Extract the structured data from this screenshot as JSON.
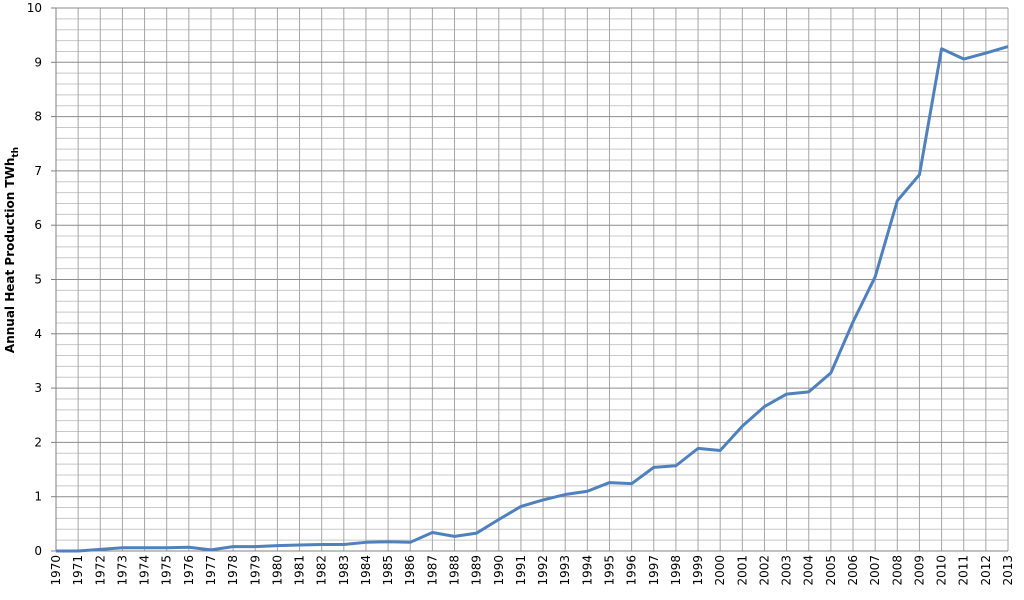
{
  "chart_data": {
    "type": "line",
    "y_label": "Annual Heat Production TWh",
    "y_label_subscript": "th",
    "categories": [
      "1970",
      "1971",
      "1972",
      "1973",
      "1974",
      "1975",
      "1976",
      "1977",
      "1978",
      "1979",
      "1980",
      "1981",
      "1982",
      "1983",
      "1984",
      "1985",
      "1986",
      "1987",
      "1988",
      "1989",
      "1990",
      "1991",
      "1992",
      "1993",
      "1994",
      "1995",
      "1996",
      "1997",
      "1998",
      "1999",
      "2000",
      "2001",
      "2002",
      "2003",
      "2004",
      "2005",
      "2006",
      "2007",
      "2008",
      "2009",
      "2010",
      "2011",
      "2012",
      "2013"
    ],
    "values": [
      0.0,
      0.0,
      0.03,
      0.06,
      0.06,
      0.06,
      0.07,
      0.02,
      0.08,
      0.08,
      0.1,
      0.11,
      0.12,
      0.12,
      0.16,
      0.17,
      0.16,
      0.34,
      0.27,
      0.33,
      0.58,
      0.82,
      0.94,
      1.04,
      1.1,
      1.26,
      1.24,
      1.54,
      1.57,
      1.89,
      1.85,
      2.3,
      2.66,
      2.89,
      2.93,
      3.28,
      4.22,
      5.05,
      6.45,
      6.93,
      9.25,
      9.06,
      9.17,
      9.29
    ],
    "color": "#4f81bd",
    "ylim": [
      0,
      10
    ],
    "yticks": [
      0,
      1,
      2,
      3,
      4,
      5,
      6,
      7,
      8,
      9,
      10
    ],
    "grid": true,
    "minor_grid_divisions": 5
  }
}
